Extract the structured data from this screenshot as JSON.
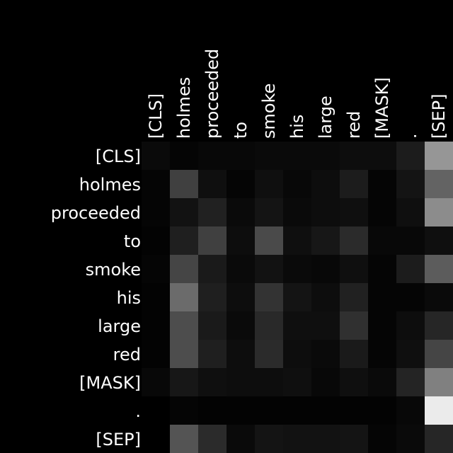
{
  "chart_data": {
    "type": "heatmap",
    "title": "",
    "xlabel": "",
    "ylabel": "",
    "x_tokens": [
      "[CLS]",
      "holmes",
      "proceeded",
      "to",
      "smoke",
      "his",
      "large",
      "red",
      "[MASK]",
      ".",
      "[SEP]"
    ],
    "y_tokens": [
      "[CLS]",
      "holmes",
      "proceeded",
      "to",
      "smoke",
      "his",
      "large",
      "red",
      "[MASK]",
      ".",
      "[SEP]"
    ],
    "colorscale": [
      "#000000",
      "#ffffff"
    ],
    "vrange": [
      0,
      1
    ],
    "values": [
      [
        0.04,
        0.02,
        0.03,
        0.03,
        0.04,
        0.04,
        0.04,
        0.05,
        0.05,
        0.11,
        0.59
      ],
      [
        0.02,
        0.25,
        0.06,
        0.02,
        0.06,
        0.03,
        0.05,
        0.11,
        0.02,
        0.08,
        0.39
      ],
      [
        0.02,
        0.07,
        0.13,
        0.04,
        0.08,
        0.04,
        0.05,
        0.06,
        0.02,
        0.06,
        0.55
      ],
      [
        0.01,
        0.12,
        0.25,
        0.05,
        0.29,
        0.06,
        0.09,
        0.17,
        0.03,
        0.03,
        0.06
      ],
      [
        0.02,
        0.27,
        0.1,
        0.04,
        0.07,
        0.04,
        0.03,
        0.06,
        0.02,
        0.11,
        0.36
      ],
      [
        0.01,
        0.42,
        0.12,
        0.05,
        0.2,
        0.08,
        0.05,
        0.13,
        0.02,
        0.02,
        0.04
      ],
      [
        0.01,
        0.3,
        0.1,
        0.04,
        0.16,
        0.06,
        0.06,
        0.19,
        0.02,
        0.05,
        0.15
      ],
      [
        0.01,
        0.3,
        0.12,
        0.05,
        0.17,
        0.05,
        0.04,
        0.1,
        0.02,
        0.06,
        0.27
      ],
      [
        0.03,
        0.09,
        0.06,
        0.05,
        0.05,
        0.06,
        0.03,
        0.06,
        0.04,
        0.14,
        0.5
      ],
      [
        0.0,
        0.02,
        0.01,
        0.01,
        0.01,
        0.01,
        0.01,
        0.01,
        0.01,
        0.03,
        0.92
      ],
      [
        0.0,
        0.33,
        0.17,
        0.04,
        0.08,
        0.07,
        0.07,
        0.08,
        0.02,
        0.04,
        0.15
      ]
    ]
  }
}
